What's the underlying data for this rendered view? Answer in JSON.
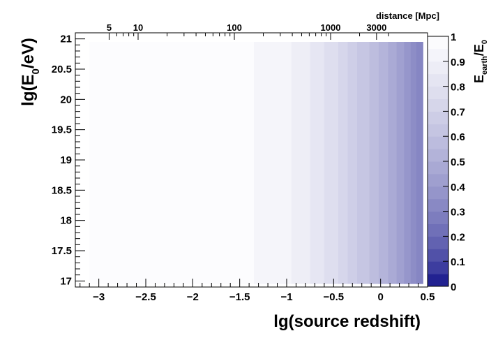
{
  "chart_data": {
    "type": "heatmap",
    "xlabel": "lg(source redshift)",
    "ylabel": "lg(E",
    "ylabel_sub": "0",
    "ylabel_tail": "/eV)",
    "xlim": [
      -3.25,
      0.5
    ],
    "ylim": [
      16.9,
      21.1
    ],
    "x_ticks": [
      -3,
      -2.5,
      -2,
      -1.5,
      -1,
      -0.5,
      0,
      0.5
    ],
    "x_tick_labels": [
      "−3",
      "−2.5",
      "−2",
      "−1.5",
      "−1",
      "−0.5",
      "0",
      "0.5"
    ],
    "y_ticks": [
      17,
      17.5,
      18,
      18.5,
      19,
      19.5,
      20,
      20.5,
      21
    ],
    "y_tick_labels": [
      "17",
      "17.5",
      "18",
      "18.5",
      "19",
      "19.5",
      "20",
      "20.5",
      "21"
    ],
    "top_axis": {
      "title": "distance [Mpc]",
      "ticks_mpc": [
        5,
        10,
        100,
        1000,
        3000
      ],
      "tick_labels": [
        "5",
        "10",
        "100",
        "1000",
        "3000"
      ]
    },
    "colorbar": {
      "title_main": "E",
      "title_sub": "earth",
      "title_tail": "/E",
      "title_tail_sub": "0",
      "range": [
        0,
        1
      ],
      "ticks": [
        0,
        0.1,
        0.2,
        0.3,
        0.4,
        0.5,
        0.6,
        0.7,
        0.8,
        0.9,
        1
      ],
      "tick_labels": [
        "0",
        "0.1",
        "0.2",
        "0.3",
        "0.4",
        "0.5",
        "0.6",
        "0.7",
        "0.8",
        "0.9",
        "1"
      ],
      "levels": 20,
      "color_low": "#000080",
      "color_high": "#ffffff"
    },
    "data_extent": {
      "x": [
        -3.1,
        0.45
      ],
      "y": [
        16.95,
        20.95
      ]
    },
    "columns": [
      {
        "x0": -3.1,
        "x1": -1.35,
        "value": 0.98
      },
      {
        "x0": -1.35,
        "x1": -0.95,
        "value": 0.93
      },
      {
        "x0": -0.95,
        "x1": -0.75,
        "value": 0.88
      },
      {
        "x0": -0.75,
        "x1": -0.6,
        "value": 0.83
      },
      {
        "x0": -0.6,
        "x1": -0.45,
        "value": 0.78
      },
      {
        "x0": -0.45,
        "x1": -0.35,
        "value": 0.73
      },
      {
        "x0": -0.35,
        "x1": -0.25,
        "value": 0.68
      },
      {
        "x0": -0.25,
        "x1": -0.12,
        "value": 0.63
      },
      {
        "x0": -0.12,
        "x1": -0.02,
        "value": 0.58
      },
      {
        "x0": -0.02,
        "x1": 0.08,
        "value": 0.53
      },
      {
        "x0": 0.08,
        "x1": 0.17,
        "value": 0.48
      },
      {
        "x0": 0.17,
        "x1": 0.25,
        "value": 0.43
      },
      {
        "x0": 0.25,
        "x1": 0.32,
        "value": 0.38
      },
      {
        "x0": 0.32,
        "x1": 0.38,
        "value": 0.34
      },
      {
        "x0": 0.38,
        "x1": 0.45,
        "value": 0.31
      }
    ]
  }
}
